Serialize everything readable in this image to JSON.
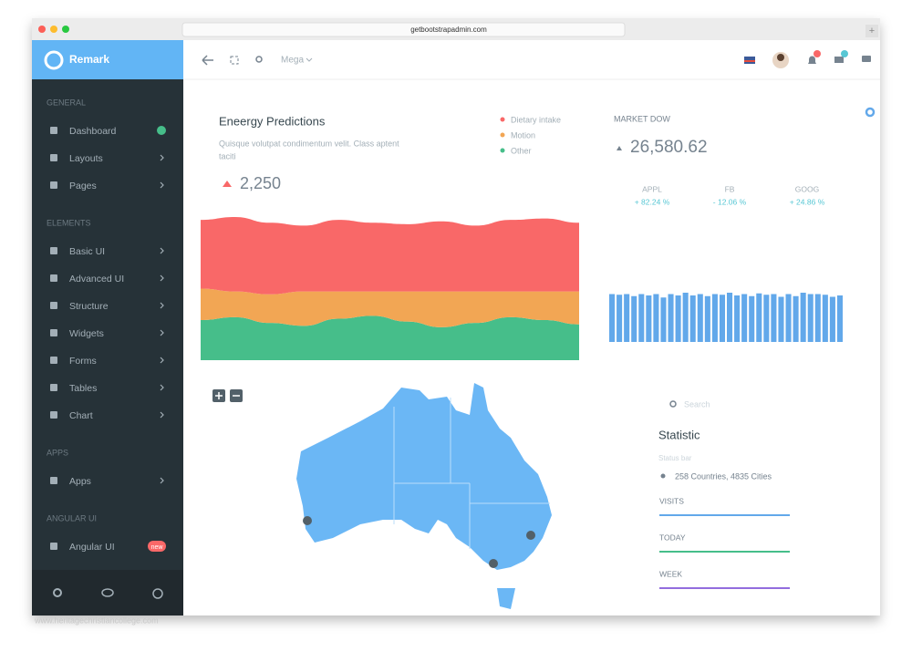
{
  "browser": {
    "url": "getbootstrapadmin.com"
  },
  "sidebar": {
    "brand": "Remark",
    "sections": [
      {
        "title": "GENERAL",
        "items": [
          {
            "label": "Dashboard"
          },
          {
            "label": "Layouts"
          },
          {
            "label": "Pages"
          }
        ]
      },
      {
        "title": "ELEMENTS",
        "items": [
          {
            "label": "Basic UI"
          },
          {
            "label": "Advanced UI"
          },
          {
            "label": "Structure"
          },
          {
            "label": "Widgets"
          },
          {
            "label": "Forms"
          },
          {
            "label": "Tables"
          },
          {
            "label": "Chart"
          }
        ]
      },
      {
        "title": "APPS",
        "items": [
          {
            "label": "Apps"
          }
        ]
      },
      {
        "title": "ANGULAR UI",
        "items": [
          {
            "label": "Angular UI",
            "badge": "new"
          }
        ]
      }
    ]
  },
  "header": {
    "menu": "Mega"
  },
  "energy": {
    "title": "Eneergy Predictions",
    "subtitle_line1": "Quisque volutpat condimentum velit. Class aptent",
    "subtitle_line2": "taciti",
    "value": "2,250"
  },
  "market": {
    "title": "MARKET DOW",
    "value": "26,580.62",
    "stocks": [
      {
        "name": "APPL",
        "change": "+ 82.24 %"
      },
      {
        "name": "FB",
        "change": "- 12.06 %"
      },
      {
        "name": "GOOG",
        "change": "+ 24.86 %"
      }
    ]
  },
  "chart_data": [
    {
      "type": "area",
      "stacked": true,
      "ylim": [
        0,
        100
      ],
      "series": [
        {
          "name": "Dietary intake",
          "color": "#f96868",
          "values": [
            48,
            52,
            50,
            46,
            50,
            48,
            47,
            49,
            46,
            50,
            51,
            48
          ]
        },
        {
          "name": "Motion",
          "color": "#f2a654",
          "values": [
            22,
            18,
            20,
            24,
            19,
            17,
            21,
            25,
            22,
            18,
            20,
            23
          ]
        },
        {
          "name": "Other",
          "color": "#46be8a",
          "values": [
            28,
            30,
            26,
            24,
            29,
            31,
            27,
            23,
            26,
            30,
            28,
            25
          ]
        }
      ]
    },
    {
      "type": "bar",
      "color": "#62a8ea",
      "ylim": [
        0,
        100
      ],
      "values": [
        70,
        69,
        70,
        67,
        70,
        68,
        70,
        65,
        70,
        68,
        72,
        68,
        70,
        67,
        70,
        69,
        72,
        68,
        70,
        67,
        71,
        69,
        70,
        66,
        70,
        67,
        72,
        70,
        70,
        69,
        66,
        68
      ]
    }
  ],
  "statistic": {
    "search_placeholder": "Search",
    "title": "Statistic",
    "status": "Status bar",
    "location": "258 Countries, 4835 Cities",
    "metrics": [
      {
        "label": "VISITS",
        "color": "#62a8ea"
      },
      {
        "label": "TODAY",
        "color": "#46be8a"
      },
      {
        "label": "WEEK",
        "color": "#926dde"
      }
    ]
  },
  "watermark": "www.heritagechristiancollege.com"
}
